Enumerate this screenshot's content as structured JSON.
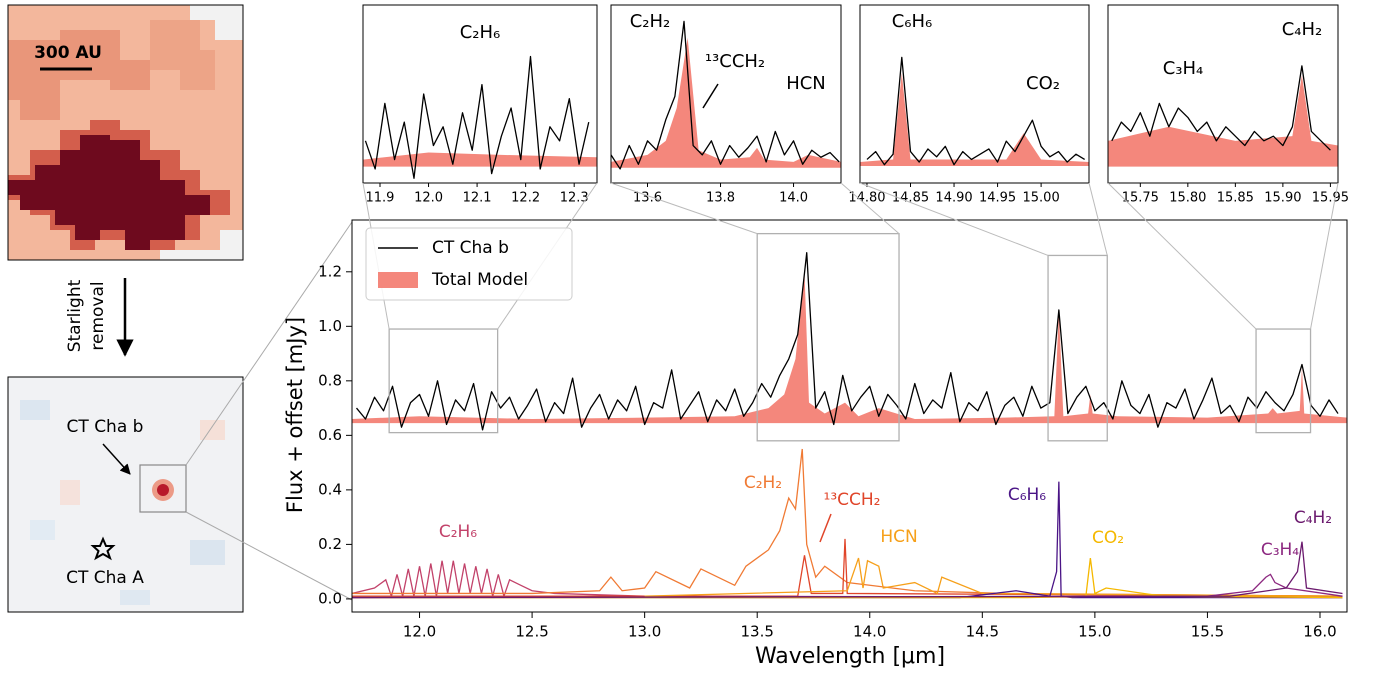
{
  "panels": {
    "top_image": {
      "scale_label": "300 AU"
    },
    "arrow_label": [
      "Starlight",
      "removal"
    ],
    "bottom_image": {
      "companion": "CT Cha b",
      "host": "CT Cha A"
    }
  },
  "chart_data": [
    {
      "type": "line",
      "xlabel": "Wavelength [μm]",
      "ylabel": "Flux + offset [mJy]",
      "xlim": [
        11.7,
        16.12
      ],
      "ylim": [
        -0.048,
        1.39
      ],
      "xticks": [
        {
          "value": 12,
          "label": "12.0"
        },
        12.5,
        {
          "value": 13,
          "label": "13.0"
        },
        13.5,
        {
          "value": 14,
          "label": "14.0"
        },
        14.5,
        {
          "value": 15,
          "label": "15.0"
        },
        15.5,
        {
          "value": 16,
          "label": "16.0"
        }
      ],
      "yticks": [
        {
          "value": 0,
          "label": "0.0"
        },
        0.2,
        0.4,
        0.6,
        0.8,
        {
          "value": 1,
          "label": "1.0"
        },
        1.2
      ],
      "legend": "upper left",
      "series": [
        {
          "name": "CT Cha b",
          "color": "#000000",
          "x": [
            11.72,
            11.76,
            11.8,
            11.84,
            11.88,
            11.92,
            11.96,
            12.0,
            12.04,
            12.08,
            12.12,
            12.16,
            12.2,
            12.24,
            12.28,
            12.32,
            12.36,
            12.4,
            12.44,
            12.48,
            12.52,
            12.56,
            12.6,
            12.64,
            12.68,
            12.72,
            12.76,
            12.8,
            12.84,
            12.88,
            12.92,
            12.96,
            13.0,
            13.04,
            13.08,
            13.12,
            13.16,
            13.2,
            13.24,
            13.28,
            13.32,
            13.36,
            13.4,
            13.44,
            13.48,
            13.52,
            13.56,
            13.6,
            13.64,
            13.68,
            13.72,
            13.76,
            13.8,
            13.84,
            13.88,
            13.92,
            13.96,
            14.0,
            14.04,
            14.08,
            14.12,
            14.16,
            14.2,
            14.24,
            14.28,
            14.32,
            14.36,
            14.4,
            14.44,
            14.48,
            14.52,
            14.56,
            14.6,
            14.64,
            14.68,
            14.72,
            14.76,
            14.8,
            14.84,
            14.88,
            14.92,
            14.96,
            15.0,
            15.04,
            15.08,
            15.12,
            15.16,
            15.2,
            15.24,
            15.28,
            15.32,
            15.36,
            15.4,
            15.44,
            15.48,
            15.52,
            15.56,
            15.6,
            15.64,
            15.68,
            15.72,
            15.76,
            15.8,
            15.84,
            15.88,
            15.92,
            15.96,
            16.0,
            16.04,
            16.08
          ],
          "values": [
            0.7,
            0.66,
            0.74,
            0.69,
            0.78,
            0.63,
            0.72,
            0.75,
            0.67,
            0.8,
            0.64,
            0.73,
            0.69,
            0.79,
            0.62,
            0.76,
            0.7,
            0.74,
            0.66,
            0.71,
            0.77,
            0.65,
            0.72,
            0.68,
            0.81,
            0.63,
            0.7,
            0.75,
            0.66,
            0.73,
            0.69,
            0.78,
            0.64,
            0.72,
            0.7,
            0.84,
            0.66,
            0.71,
            0.76,
            0.65,
            0.73,
            0.69,
            0.77,
            0.67,
            0.72,
            0.79,
            0.74,
            0.82,
            0.88,
            0.97,
            1.27,
            0.7,
            0.76,
            0.64,
            0.82,
            0.69,
            0.74,
            0.78,
            0.67,
            0.75,
            0.71,
            0.66,
            0.79,
            0.68,
            0.73,
            0.7,
            0.83,
            0.65,
            0.72,
            0.69,
            0.76,
            0.64,
            0.71,
            0.74,
            0.67,
            0.78,
            0.7,
            0.72,
            1.06,
            0.68,
            0.74,
            0.78,
            0.69,
            0.72,
            0.66,
            0.8,
            0.71,
            0.68,
            0.75,
            0.63,
            0.72,
            0.7,
            0.77,
            0.66,
            0.73,
            0.81,
            0.68,
            0.71,
            0.65,
            0.74,
            0.7,
            0.76,
            0.72,
            0.69,
            0.75,
            0.86,
            0.71,
            0.67,
            0.73,
            0.68
          ]
        },
        {
          "name": "Total Model",
          "color": "#f4877c",
          "fill": true,
          "baseline": 0.645,
          "x": [
            11.7,
            12.0,
            12.5,
            13.0,
            13.4,
            13.55,
            13.62,
            13.67,
            13.71,
            13.73,
            13.8,
            13.89,
            13.95,
            14.04,
            14.2,
            14.6,
            14.82,
            14.84,
            14.86,
            14.97,
            14.98,
            14.99,
            15.1,
            15.5,
            15.77,
            15.79,
            15.81,
            15.91,
            15.92,
            15.93,
            16.12
          ],
          "values": [
            0.66,
            0.67,
            0.66,
            0.665,
            0.67,
            0.7,
            0.75,
            0.88,
            1.2,
            0.72,
            0.68,
            0.72,
            0.67,
            0.7,
            0.66,
            0.665,
            0.67,
            1.06,
            0.67,
            0.68,
            0.75,
            0.68,
            0.67,
            0.665,
            0.68,
            0.7,
            0.68,
            0.69,
            0.85,
            0.68,
            0.665
          ]
        }
      ],
      "molecules": [
        {
          "name": "C₂H₆",
          "color": "#c2426a",
          "x": [
            11.7,
            11.8,
            11.85,
            11.875,
            11.9,
            11.925,
            11.95,
            11.975,
            12.0,
            12.025,
            12.05,
            12.075,
            12.1,
            12.125,
            12.15,
            12.175,
            12.2,
            12.225,
            12.25,
            12.275,
            12.3,
            12.325,
            12.35,
            12.375,
            12.4,
            12.45,
            12.5,
            12.6,
            13.0,
            16.1
          ],
          "values": [
            0.02,
            0.04,
            0.07,
            0.01,
            0.09,
            0.01,
            0.11,
            0.01,
            0.12,
            0.01,
            0.13,
            0.01,
            0.14,
            0.02,
            0.14,
            0.02,
            0.13,
            0.02,
            0.12,
            0.02,
            0.11,
            0.01,
            0.09,
            0.01,
            0.07,
            0.05,
            0.03,
            0.02,
            0.01,
            0.005
          ]
        },
        {
          "name": "C₂H₂",
          "color": "#f07a34",
          "x": [
            11.7,
            12.5,
            12.8,
            12.85,
            12.9,
            13.0,
            13.05,
            13.2,
            13.25,
            13.4,
            13.45,
            13.55,
            13.6,
            13.64,
            13.67,
            13.7,
            13.72,
            13.76,
            13.8,
            13.9,
            14.0,
            14.2,
            14.6,
            16.1
          ],
          "values": [
            0.02,
            0.02,
            0.03,
            0.08,
            0.03,
            0.04,
            0.1,
            0.04,
            0.11,
            0.05,
            0.12,
            0.18,
            0.25,
            0.37,
            0.33,
            0.55,
            0.2,
            0.08,
            0.12,
            0.06,
            0.05,
            0.03,
            0.02,
            0.01
          ]
        },
        {
          "name": "¹³CCH₂",
          "color": "#e0452a",
          "x": [
            11.7,
            13.68,
            13.71,
            13.74,
            13.88,
            13.89,
            13.9,
            16.1
          ],
          "values": [
            0.01,
            0.01,
            0.16,
            0.02,
            0.02,
            0.22,
            0.02,
            0.01
          ]
        },
        {
          "name": "HCN",
          "color": "#f6a01a",
          "x": [
            13.0,
            13.9,
            13.95,
            13.97,
            13.99,
            14.04,
            14.06,
            14.2,
            14.3,
            14.32,
            14.5,
            16.1
          ],
          "values": [
            0.01,
            0.03,
            0.15,
            0.04,
            0.14,
            0.12,
            0.04,
            0.06,
            0.02,
            0.08,
            0.02,
            0.01
          ]
        },
        {
          "name": "C₆H₆",
          "color": "#4a1486",
          "x": [
            11.7,
            14.4,
            14.65,
            14.8,
            14.83,
            14.84,
            14.85,
            14.9,
            16.1
          ],
          "values": [
            0.005,
            0.005,
            0.03,
            0.01,
            0.1,
            0.43,
            0.01,
            0.005,
            0.005
          ]
        },
        {
          "name": "CO₂",
          "color": "#f5b800",
          "x": [
            11.7,
            14.7,
            14.96,
            14.98,
            15.0,
            15.05,
            15.3,
            16.1
          ],
          "values": [
            0.005,
            0.005,
            0.01,
            0.15,
            0.02,
            0.04,
            0.01,
            0.005
          ]
        },
        {
          "name": "C₃H₄",
          "color": "#8c2880",
          "x": [
            11.7,
            15.5,
            15.7,
            15.76,
            15.78,
            15.8,
            15.85,
            16.1
          ],
          "values": [
            0.005,
            0.01,
            0.03,
            0.08,
            0.09,
            0.06,
            0.04,
            0.01
          ]
        },
        {
          "name": "C₄H₂",
          "color": "#6b1a6e",
          "x": [
            11.7,
            15.6,
            15.85,
            15.9,
            15.92,
            15.94,
            16.1
          ],
          "values": [
            0.005,
            0.01,
            0.04,
            0.1,
            0.21,
            0.04,
            0.02
          ]
        }
      ]
    },
    {
      "type": "line",
      "xlim": [
        11.865,
        12.347
      ],
      "ylim": [
        0.61,
        0.99
      ],
      "xticks": [
        11.9,
        {
          "value": 12,
          "label": "12.0"
        },
        12.1,
        12.2,
        12.3
      ],
      "annotations": [
        "C₂H₆"
      ],
      "series": [
        {
          "color": "#000000",
          "x": [
            11.87,
            11.89,
            11.91,
            11.93,
            11.95,
            11.97,
            11.99,
            12.01,
            12.03,
            12.05,
            12.07,
            12.09,
            12.11,
            12.13,
            12.15,
            12.17,
            12.19,
            12.21,
            12.23,
            12.25,
            12.27,
            12.29,
            12.31,
            12.33
          ],
          "values": [
            0.7,
            0.64,
            0.78,
            0.66,
            0.74,
            0.62,
            0.8,
            0.69,
            0.73,
            0.65,
            0.76,
            0.68,
            0.82,
            0.63,
            0.71,
            0.77,
            0.66,
            0.88,
            0.64,
            0.73,
            0.7,
            0.79,
            0.65,
            0.74
          ]
        },
        {
          "color": "#f4877c",
          "fill": true,
          "baseline": 0.645,
          "x": [
            11.865,
            12.0,
            12.15,
            12.347
          ],
          "values": [
            0.66,
            0.675,
            0.67,
            0.665
          ]
        }
      ]
    },
    {
      "type": "line",
      "xlim": [
        13.5,
        14.13
      ],
      "ylim": [
        0.58,
        1.34
      ],
      "xticks": [
        13.6,
        13.8,
        {
          "value": 14,
          "label": "14.0"
        }
      ],
      "annotations": [
        "C₂H₂",
        "¹³CCH₂",
        "HCN"
      ],
      "series": [
        {
          "color": "#000000",
          "x": [
            13.5,
            13.525,
            13.55,
            13.575,
            13.6,
            13.625,
            13.65,
            13.675,
            13.7,
            13.725,
            13.75,
            13.775,
            13.8,
            13.825,
            13.85,
            13.875,
            13.9,
            13.925,
            13.95,
            13.975,
            14.0,
            14.025,
            14.05,
            14.075,
            14.1,
            14.125
          ],
          "values": [
            0.7,
            0.64,
            0.74,
            0.66,
            0.76,
            0.72,
            0.85,
            0.95,
            1.27,
            0.74,
            0.7,
            0.76,
            0.66,
            0.74,
            0.69,
            0.73,
            0.78,
            0.67,
            0.8,
            0.7,
            0.76,
            0.66,
            0.72,
            0.69,
            0.71,
            0.67
          ]
        },
        {
          "color": "#f4877c",
          "fill": true,
          "baseline": 0.645,
          "x": [
            13.5,
            13.6,
            13.65,
            13.68,
            13.71,
            13.74,
            13.8,
            13.88,
            13.9,
            13.92,
            14.0,
            14.04,
            14.13
          ],
          "values": [
            0.67,
            0.7,
            0.76,
            0.9,
            1.2,
            0.72,
            0.68,
            0.69,
            0.73,
            0.68,
            0.67,
            0.7,
            0.67
          ]
        }
      ]
    },
    {
      "type": "line",
      "xlim": [
        14.792,
        15.055
      ],
      "ylim": [
        0.58,
        1.26
      ],
      "xticks": [
        {
          "value": 14.8,
          "label": "14.80"
        },
        14.85,
        {
          "value": 14.9,
          "label": "14.90"
        },
        14.95,
        {
          "value": 15,
          "label": "15.00"
        }
      ],
      "annotations": [
        "C₆H₆",
        "CO₂"
      ],
      "series": [
        {
          "color": "#000000",
          "x": [
            14.8,
            14.81,
            14.82,
            14.83,
            14.84,
            14.85,
            14.86,
            14.87,
            14.88,
            14.89,
            14.9,
            14.91,
            14.92,
            14.93,
            14.94,
            14.95,
            14.96,
            14.97,
            14.98,
            14.99,
            15.0,
            15.01,
            15.02,
            15.03,
            15.04,
            15.05
          ],
          "values": [
            0.67,
            0.7,
            0.65,
            0.69,
            1.06,
            0.7,
            0.66,
            0.71,
            0.68,
            0.72,
            0.65,
            0.7,
            0.67,
            0.69,
            0.71,
            0.66,
            0.74,
            0.7,
            0.76,
            0.82,
            0.72,
            0.68,
            0.7,
            0.66,
            0.69,
            0.67
          ]
        },
        {
          "color": "#f4877c",
          "fill": true,
          "baseline": 0.645,
          "x": [
            14.792,
            14.83,
            14.84,
            14.85,
            14.96,
            14.98,
            15.0,
            15.055
          ],
          "values": [
            0.66,
            0.67,
            1.0,
            0.67,
            0.67,
            0.77,
            0.67,
            0.66
          ]
        }
      ]
    },
    {
      "type": "line",
      "xlim": [
        15.716,
        15.958
      ],
      "ylim": [
        0.61,
        0.99
      ],
      "xticks": [
        15.75,
        {
          "value": 15.8,
          "label": "15.80"
        },
        15.85,
        {
          "value": 15.9,
          "label": "15.90"
        },
        15.95
      ],
      "annotations": [
        "C₄H₂",
        "C₃H₄"
      ],
      "series": [
        {
          "color": "#000000",
          "x": [
            15.72,
            15.73,
            15.74,
            15.75,
            15.76,
            15.77,
            15.78,
            15.79,
            15.8,
            15.81,
            15.82,
            15.83,
            15.84,
            15.85,
            15.86,
            15.87,
            15.88,
            15.89,
            15.9,
            15.91,
            15.92,
            15.93,
            15.94,
            15.95
          ],
          "values": [
            0.7,
            0.74,
            0.72,
            0.76,
            0.71,
            0.78,
            0.73,
            0.77,
            0.75,
            0.72,
            0.74,
            0.7,
            0.73,
            0.71,
            0.69,
            0.72,
            0.7,
            0.71,
            0.69,
            0.73,
            0.86,
            0.72,
            0.7,
            0.68
          ]
        },
        {
          "color": "#f4877c",
          "fill": true,
          "baseline": 0.645,
          "x": [
            15.716,
            15.78,
            15.85,
            15.91,
            15.92,
            15.93,
            15.958
          ],
          "values": [
            0.7,
            0.73,
            0.7,
            0.71,
            0.84,
            0.7,
            0.69
          ]
        }
      ]
    }
  ]
}
